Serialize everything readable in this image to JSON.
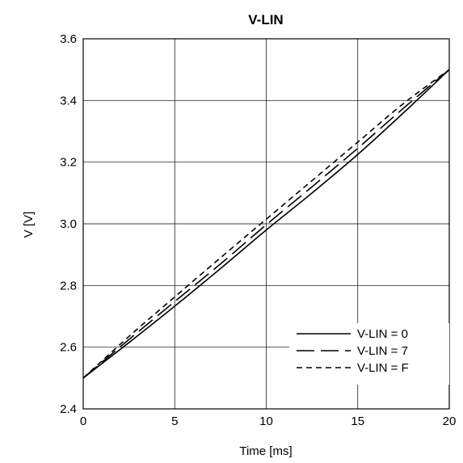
{
  "chart_data": {
    "type": "line",
    "title": "V-LIN",
    "xlabel": "Time [ms]",
    "ylabel": "V [V]",
    "xlim": [
      0,
      20
    ],
    "ylim": [
      2.4,
      3.6
    ],
    "xticks": [
      0,
      5,
      10,
      15,
      20
    ],
    "yticks": [
      2.4,
      2.6,
      2.8,
      3.0,
      3.2,
      3.4,
      3.6
    ],
    "ytick_labels": [
      "2.4",
      "2.6",
      "2.8",
      "3.0",
      "3.2",
      "3.4",
      "3.6"
    ],
    "grid": true,
    "legend": "bottom-right",
    "series": [
      {
        "name": "V-LIN = 0",
        "dash": "solid",
        "x": [
          0,
          2.5,
          5,
          7.5,
          10,
          12.5,
          15,
          17.5,
          20
        ],
        "y": [
          2.5,
          2.615,
          2.733,
          2.855,
          2.98,
          3.1,
          3.225,
          3.36,
          3.5
        ]
      },
      {
        "name": "V-LIN = 7",
        "dash": "long-dash",
        "x": [
          0,
          2.5,
          5,
          7.5,
          10,
          12.5,
          15,
          17.5,
          20
        ],
        "y": [
          2.5,
          2.625,
          2.748,
          2.87,
          2.997,
          3.12,
          3.245,
          3.375,
          3.5
        ]
      },
      {
        "name": "V-LIN = F",
        "dash": "short-dash",
        "x": [
          0,
          2.5,
          5,
          7.5,
          10,
          12.5,
          15,
          17.5,
          20
        ],
        "y": [
          2.5,
          2.635,
          2.763,
          2.89,
          3.015,
          3.14,
          3.265,
          3.39,
          3.5
        ]
      }
    ]
  }
}
